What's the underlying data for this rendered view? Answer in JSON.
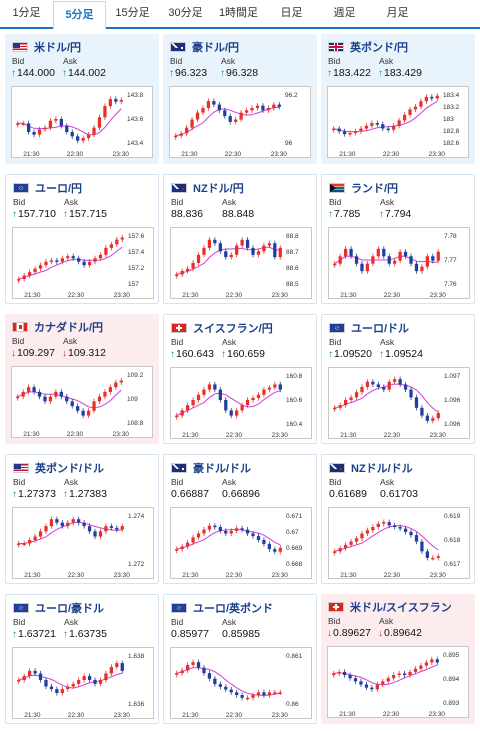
{
  "tabs": [
    "1分足",
    "5分足",
    "15分足",
    "30分足",
    "1時間足",
    "日足",
    "週足",
    "月足"
  ],
  "active_tab": 1,
  "labels": {
    "bid": "Bid",
    "ask": "Ask"
  },
  "x_ticks": [
    "21:30",
    "22:30",
    "23:30"
  ],
  "colors": {
    "up_candle": "#e8302a",
    "down_candle": "#1f3fa0",
    "moving_average": "#d040d8",
    "arrow_up": "#1a8a7a",
    "arrow_down": "#d0302a"
  },
  "pairs": [
    {
      "name": "米ドル/円",
      "flag": "us",
      "bid": "144.000",
      "ask": "144.002",
      "bid_dir": "up",
      "ask_dir": "up",
      "bg": "blue",
      "chart_data": {
        "type": "candlestick",
        "yticks": [
          "143.8",
          "143.6",
          "143.4"
        ],
        "ylim": [
          143.3,
          143.9
        ],
        "series": [
          143.55,
          143.55,
          143.45,
          143.42,
          143.48,
          143.5,
          143.58,
          143.6,
          143.52,
          143.45,
          143.4,
          143.35,
          143.38,
          143.42,
          143.5,
          143.62,
          143.75,
          143.83,
          143.8,
          143.82
        ]
      }
    },
    {
      "name": "豪ドル/円",
      "flag": "au",
      "bid": "96.323",
      "ask": "96.328",
      "bid_dir": "up",
      "ask_dir": "up",
      "bg": "blue",
      "chart_data": {
        "type": "candlestick",
        "yticks": [
          "96.2",
          "96"
        ],
        "ylim": [
          95.9,
          96.35
        ],
        "series": [
          95.98,
          96.0,
          96.05,
          96.12,
          96.18,
          96.22,
          96.28,
          96.25,
          96.2,
          96.15,
          96.1,
          96.12,
          96.18,
          96.2,
          96.22,
          96.24,
          96.2,
          96.22,
          96.25,
          96.23
        ]
      }
    },
    {
      "name": "英ポンド/円",
      "flag": "uk",
      "bid": "183.422",
      "ask": "183.429",
      "bid_dir": "up",
      "ask_dir": "up",
      "bg": "blue",
      "chart_data": {
        "type": "candlestick",
        "yticks": [
          "183.4",
          "183.2",
          "183",
          "182.8",
          "182.6"
        ],
        "ylim": [
          182.5,
          183.45
        ],
        "series": [
          182.8,
          182.75,
          182.7,
          182.72,
          182.75,
          182.8,
          182.85,
          182.9,
          182.88,
          182.8,
          182.78,
          182.85,
          182.95,
          183.05,
          183.15,
          183.2,
          183.3,
          183.38,
          183.35,
          183.4
        ]
      }
    },
    {
      "name": "ユーロ/円",
      "flag": "eu",
      "bid": "157.710",
      "ask": "157.715",
      "bid_dir": "up",
      "ask_dir": "up",
      "bg": "white",
      "chart_data": {
        "type": "candlestick",
        "yticks": [
          "157.6",
          "157.4",
          "157.2",
          "157"
        ],
        "ylim": [
          156.95,
          157.7
        ],
        "series": [
          157.05,
          157.1,
          157.15,
          157.2,
          157.25,
          157.3,
          157.32,
          157.3,
          157.35,
          157.38,
          157.35,
          157.3,
          157.25,
          157.3,
          157.35,
          157.4,
          157.5,
          157.55,
          157.62,
          157.65
        ]
      }
    },
    {
      "name": "NZドル/円",
      "flag": "nz",
      "bid": "88.836",
      "ask": "88.848",
      "bid_dir": "none",
      "ask_dir": "none",
      "bg": "white",
      "chart_data": {
        "type": "candlestick",
        "yticks": [
          "88.8",
          "88.7",
          "88.6",
          "88.5"
        ],
        "ylim": [
          88.45,
          88.9
        ],
        "series": [
          88.55,
          88.58,
          88.6,
          88.65,
          88.72,
          88.78,
          88.85,
          88.82,
          88.75,
          88.7,
          88.72,
          88.8,
          88.85,
          88.78,
          88.72,
          88.75,
          88.8,
          88.82,
          88.7,
          88.78
        ]
      }
    },
    {
      "name": "ランド/円",
      "flag": "za",
      "bid": "7.785",
      "ask": "7.794",
      "bid_dir": "up",
      "ask_dir": "up",
      "bg": "white",
      "chart_data": {
        "type": "candlestick",
        "yticks": [
          "7.78",
          "7.77",
          "7.76"
        ],
        "ylim": [
          7.755,
          7.79
        ],
        "series": [
          7.77,
          7.775,
          7.78,
          7.775,
          7.77,
          7.765,
          7.77,
          7.775,
          7.78,
          7.775,
          7.77,
          7.772,
          7.778,
          7.775,
          7.77,
          7.765,
          7.768,
          7.775,
          7.772,
          7.778
        ]
      }
    },
    {
      "name": "カナダドル/円",
      "flag": "ca",
      "bid": "109.297",
      "ask": "109.312",
      "bid_dir": "down",
      "ask_dir": "down",
      "bg": "pink",
      "chart_data": {
        "type": "candlestick",
        "yticks": [
          "109.2",
          "109",
          "108.8"
        ],
        "ylim": [
          108.75,
          109.3
        ],
        "series": [
          109.05,
          109.1,
          109.15,
          109.1,
          109.05,
          109.0,
          109.05,
          109.1,
          109.05,
          109.0,
          108.95,
          108.9,
          108.85,
          108.9,
          109.0,
          109.05,
          109.1,
          109.15,
          109.2,
          109.22
        ]
      }
    },
    {
      "name": "スイスフラン/円",
      "flag": "ch",
      "bid": "160.643",
      "ask": "160.659",
      "bid_dir": "up",
      "ask_dir": "up",
      "bg": "white",
      "chart_data": {
        "type": "candlestick",
        "yticks": [
          "160.8",
          "160.6",
          "160.4"
        ],
        "ylim": [
          160.35,
          160.85
        ],
        "series": [
          160.45,
          160.5,
          160.55,
          160.6,
          160.65,
          160.7,
          160.75,
          160.7,
          160.6,
          160.5,
          160.45,
          160.5,
          160.55,
          160.6,
          160.62,
          160.65,
          160.7,
          160.72,
          160.75,
          160.7
        ]
      }
    },
    {
      "name": "ユーロ/ドル",
      "flag": "eu",
      "bid": "1.09520",
      "ask": "1.09524",
      "bid_dir": "up",
      "ask_dir": "up",
      "bg": "white",
      "chart_data": {
        "type": "candlestick",
        "yticks": [
          "1.097",
          "1.096",
          "1.096"
        ],
        "ylim": [
          1.0955,
          1.0975
        ],
        "series": [
          1.0962,
          1.0963,
          1.0965,
          1.0966,
          1.0968,
          1.097,
          1.0972,
          1.0971,
          1.097,
          1.0969,
          1.0972,
          1.0973,
          1.0971,
          1.0969,
          1.0966,
          1.0962,
          1.0959,
          1.0957,
          1.0958,
          1.096
        ]
      }
    },
    {
      "name": "英ポンド/ドル",
      "flag": "us",
      "bid": "1.27373",
      "ask": "1.27383",
      "bid_dir": "up",
      "ask_dir": "up",
      "bg": "white",
      "chart_data": {
        "type": "candlestick",
        "yticks": [
          "1.274",
          "1.272"
        ],
        "ylim": [
          1.2715,
          1.2745
        ],
        "series": [
          1.2728,
          1.2728,
          1.273,
          1.2732,
          1.2735,
          1.2738,
          1.2742,
          1.274,
          1.2738,
          1.274,
          1.2742,
          1.274,
          1.2738,
          1.2735,
          1.2732,
          1.2735,
          1.2738,
          1.2737,
          1.2736,
          1.2738
        ]
      }
    },
    {
      "name": "豪ドル/ドル",
      "flag": "au",
      "bid": "0.66887",
      "ask": "0.66896",
      "bid_dir": "none",
      "ask_dir": "none",
      "bg": "white",
      "chart_data": {
        "type": "candlestick",
        "yticks": [
          "0.671",
          "0.67",
          "0.669",
          "0.668"
        ],
        "ylim": [
          0.6675,
          0.6715
        ],
        "series": [
          0.6688,
          0.669,
          0.6693,
          0.6697,
          0.67,
          0.6703,
          0.6706,
          0.6705,
          0.6702,
          0.67,
          0.6702,
          0.6704,
          0.6703,
          0.67,
          0.6698,
          0.6695,
          0.6692,
          0.6688,
          0.6686,
          0.6689
        ]
      }
    },
    {
      "name": "NZドル/ドル",
      "flag": "nz",
      "bid": "0.61689",
      "ask": "0.61703",
      "bid_dir": "none",
      "ask_dir": "none",
      "bg": "white",
      "chart_data": {
        "type": "candlestick",
        "yticks": [
          "0.619",
          "0.618",
          "0.617"
        ],
        "ylim": [
          0.6163,
          0.6195
        ],
        "series": [
          0.6172,
          0.6174,
          0.6176,
          0.6178,
          0.618,
          0.6183,
          0.6185,
          0.6187,
          0.6189,
          0.619,
          0.6188,
          0.6187,
          0.6186,
          0.6184,
          0.6182,
          0.6178,
          0.6172,
          0.6168,
          0.6168,
          0.6169
        ]
      }
    },
    {
      "name": "ユーロ/豪ドル",
      "flag": "eu",
      "bid": "1.63721",
      "ask": "1.63735",
      "bid_dir": "up",
      "ask_dir": "up",
      "bg": "white",
      "chart_data": {
        "type": "candlestick",
        "yticks": [
          "1.638",
          "1.636"
        ],
        "ylim": [
          1.6345,
          1.6385
        ],
        "series": [
          1.6365,
          1.6368,
          1.6372,
          1.637,
          1.6365,
          1.636,
          1.6358,
          1.6355,
          1.6358,
          1.636,
          1.6362,
          1.6365,
          1.6368,
          1.6365,
          1.6362,
          1.6365,
          1.637,
          1.6375,
          1.6378,
          1.6372
        ]
      }
    },
    {
      "name": "ユーロ/英ポンド",
      "flag": "eu",
      "bid": "0.85977",
      "ask": "0.85985",
      "bid_dir": "none",
      "ask_dir": "none",
      "bg": "white",
      "chart_data": {
        "type": "candlestick",
        "yticks": [
          "0.861",
          "0.86"
        ],
        "ylim": [
          0.8593,
          0.8612
        ],
        "series": [
          0.8605,
          0.8606,
          0.8608,
          0.8609,
          0.8607,
          0.8605,
          0.8603,
          0.8601,
          0.86,
          0.8599,
          0.8598,
          0.8597,
          0.8596,
          0.8596,
          0.8597,
          0.8598,
          0.8597,
          0.8598,
          0.8598,
          0.8598
        ]
      }
    },
    {
      "name": "米ドル/スイスフラン",
      "flag": "ch",
      "bid": "0.89627",
      "ask": "0.89642",
      "bid_dir": "down",
      "ask_dir": "down",
      "bg": "pink",
      "chart_data": {
        "type": "candlestick",
        "yticks": [
          "0.895",
          "0.894",
          "0.893"
        ],
        "ylim": [
          0.8925,
          0.8958
        ],
        "series": [
          0.8945,
          0.8946,
          0.8944,
          0.8942,
          0.894,
          0.8938,
          0.8936,
          0.8935,
          0.8938,
          0.894,
          0.8942,
          0.8944,
          0.8945,
          0.8944,
          0.8946,
          0.8948,
          0.895,
          0.8952,
          0.8954,
          0.8952
        ]
      }
    }
  ]
}
